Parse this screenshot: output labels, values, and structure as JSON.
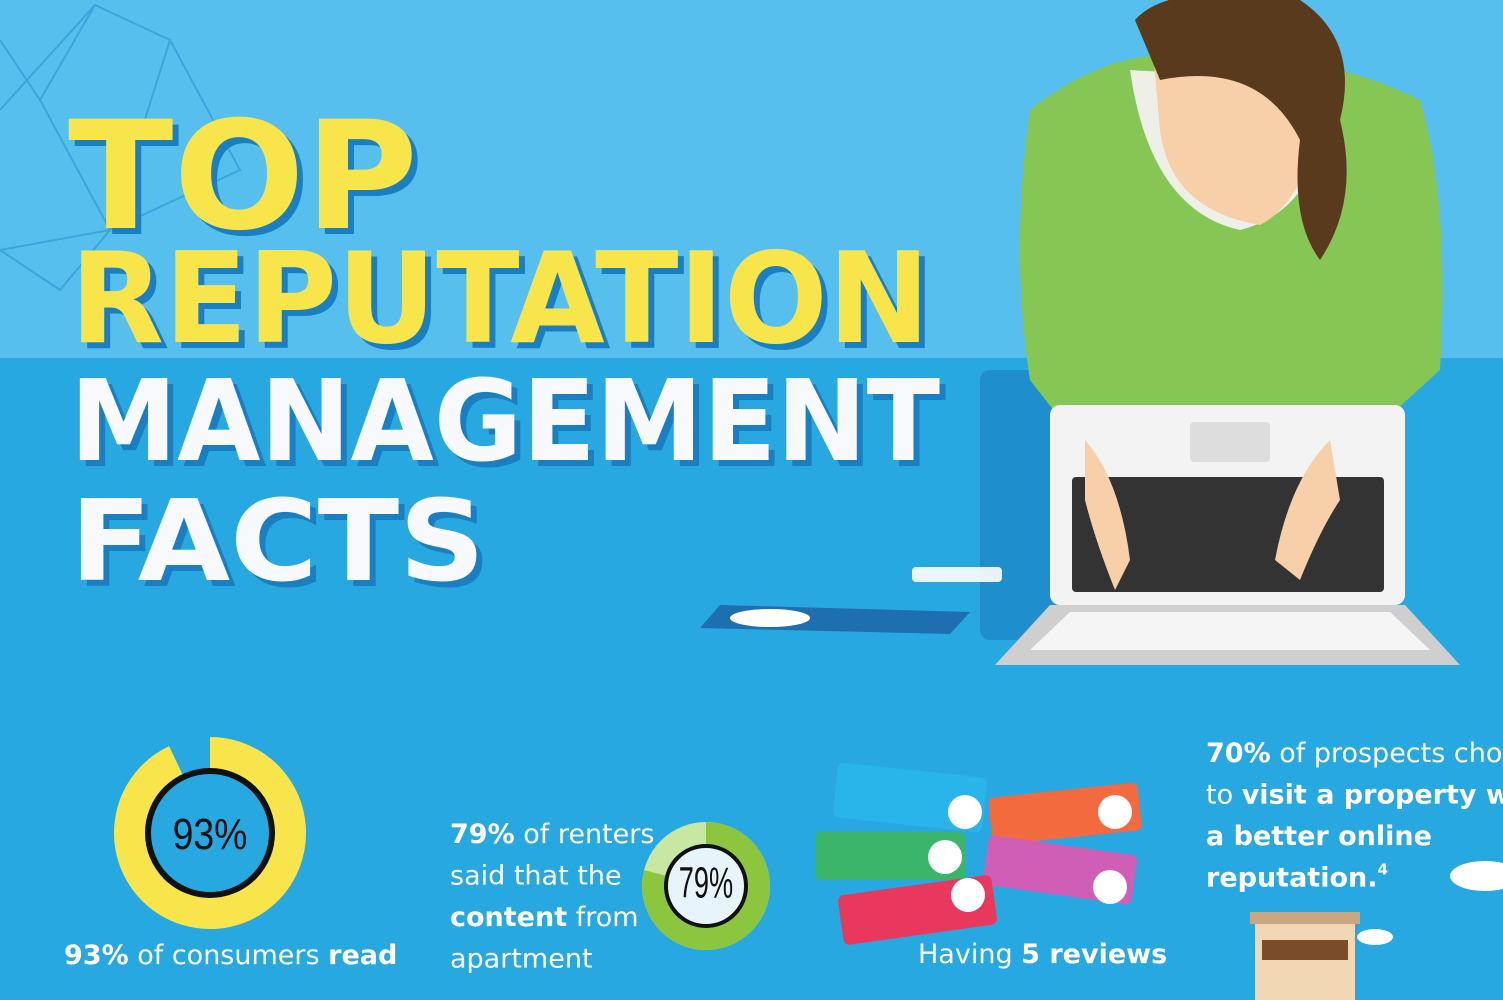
{
  "title": {
    "lines": [
      "TOP",
      "REPUTATION",
      "MANAGEMENT",
      "FACTS"
    ]
  },
  "facts": [
    {
      "ring": {
        "value": 93,
        "label": "93%"
      },
      "lines": [
        [
          {
            "text": "93%",
            "bold": true
          },
          {
            "text": " of consumers "
          },
          {
            "text": "read",
            "bold": true
          }
        ]
      ]
    },
    {
      "ring": {
        "value": 79,
        "label": "79%"
      },
      "lines": [
        [
          {
            "text": "79%",
            "bold": true
          },
          {
            "text": " of renters"
          }
        ],
        [
          {
            "text": "said that the"
          }
        ],
        [
          {
            "text": "content",
            "bold": true
          },
          {
            "text": " from"
          }
        ],
        [
          {
            "text": "apartment"
          }
        ]
      ]
    },
    {
      "lines": [
        [
          {
            "text": "Having "
          },
          {
            "text": "5 reviews",
            "bold": true
          }
        ]
      ]
    },
    {
      "lines": [
        [
          {
            "text": "70%",
            "bold": true
          },
          {
            "text": " of prospects chos"
          }
        ],
        [
          {
            "text": "to "
          },
          {
            "text": "visit a property wit",
            "bold": true
          }
        ],
        [
          {
            "text": "a better online",
            "bold": true
          }
        ],
        [
          {
            "text": "reputation.",
            "bold": true
          },
          {
            "text": "4",
            "sup": true
          }
        ]
      ]
    }
  ]
}
